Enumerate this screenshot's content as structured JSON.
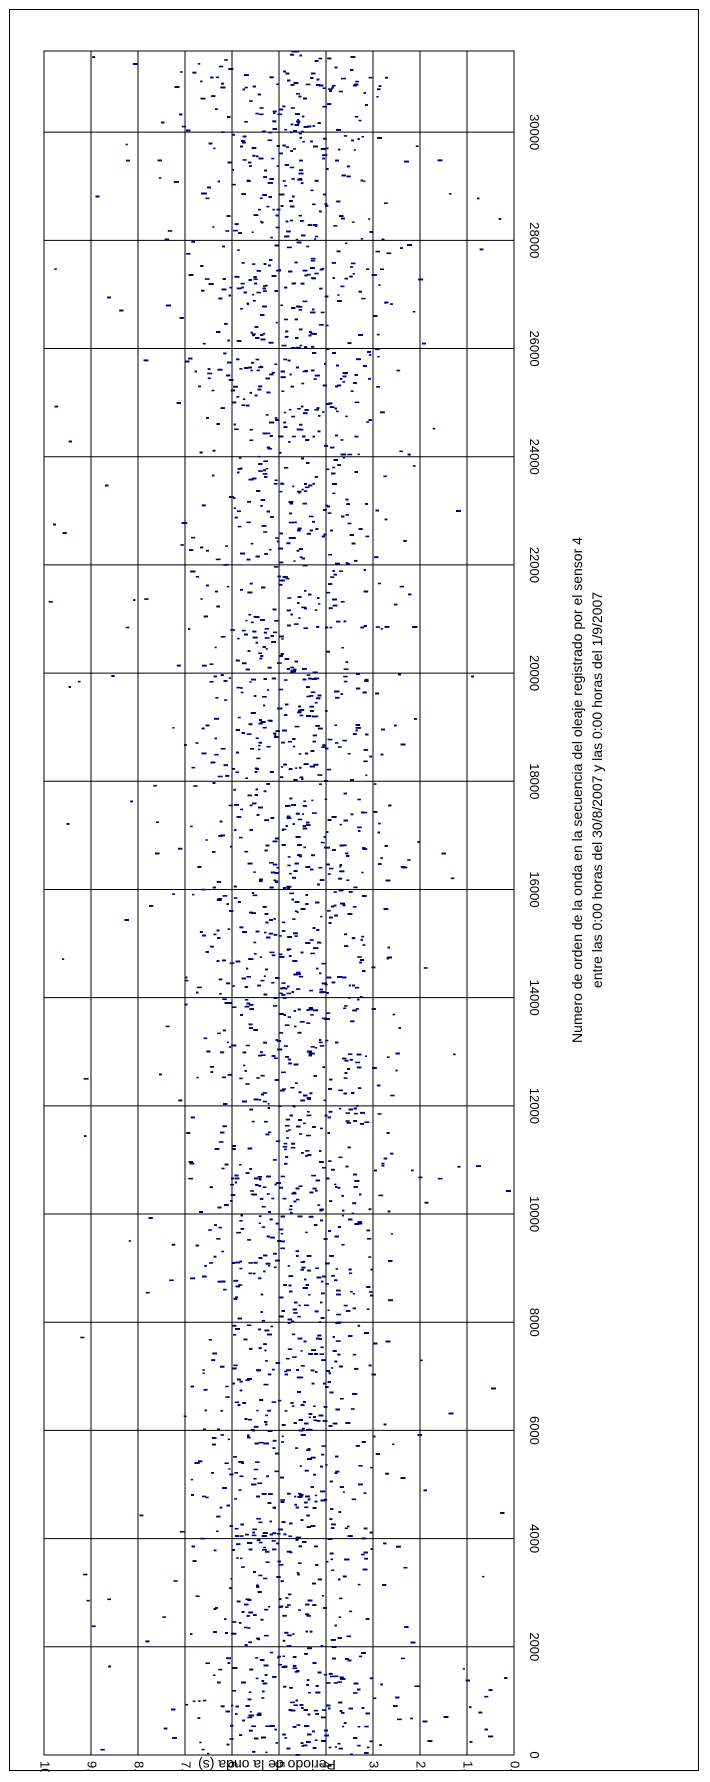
{
  "chart_data": {
    "type": "scatter",
    "xlabel_lines": [
      "Numero de orden de la onda en la secuencia del oleaje registrado por el sensor 4",
      "entre las 0:00 horas del 30/8/2007 y las 0:00 horas del 1/9/2007"
    ],
    "ylabel": "Periodo de la onda (s)",
    "xlim": [
      0,
      31500
    ],
    "ylim": [
      0,
      10
    ],
    "x_ticks": [
      "0",
      "2000",
      "4000",
      "6000",
      "8000",
      "10000",
      "12000",
      "14000",
      "16000",
      "18000",
      "20000",
      "22000",
      "24000",
      "26000",
      "28000",
      "30000"
    ],
    "y_ticks": [
      "0.00",
      "1.00",
      "2.00",
      "3.00",
      "4.00",
      "5.00",
      "6.00",
      "7.00",
      "8.00",
      "9.00",
      "10.00"
    ],
    "grid": true,
    "rotation": "90deg-clockwise",
    "marker": "short horizontal dash",
    "series_color": "#00007e",
    "sample_points": [
      [
        120,
        4.8
      ],
      [
        450,
        5.6
      ],
      [
        900,
        6.2
      ],
      [
        1200,
        0.5
      ],
      [
        1500,
        3.9
      ],
      [
        2100,
        7.8
      ],
      [
        2600,
        4.4
      ],
      [
        3300,
        3.6
      ],
      [
        4100,
        5.1
      ],
      [
        5200,
        2.7
      ],
      [
        6100,
        4.9
      ],
      [
        7300,
        6.4
      ],
      [
        8200,
        4.2
      ],
      [
        9100,
        5.5
      ],
      [
        10200,
        3.4
      ],
      [
        11300,
        4.7
      ],
      [
        12100,
        7.1
      ],
      [
        13200,
        5.0
      ],
      [
        14100,
        4.1
      ],
      [
        15300,
        5.8
      ],
      [
        16200,
        3.7
      ],
      [
        17400,
        4.6
      ],
      [
        18100,
        6.1
      ],
      [
        19300,
        4.3
      ],
      [
        20100,
        5.2
      ],
      [
        21200,
        3.9
      ],
      [
        22400,
        4.8
      ],
      [
        23100,
        6.6
      ],
      [
        24200,
        4.0
      ],
      [
        25300,
        5.4
      ],
      [
        26100,
        3.5
      ],
      [
        27200,
        4.5
      ],
      [
        28300,
        5.9
      ],
      [
        29100,
        4.2
      ],
      [
        30200,
        5.1
      ],
      [
        31100,
        6.8
      ]
    ]
  }
}
